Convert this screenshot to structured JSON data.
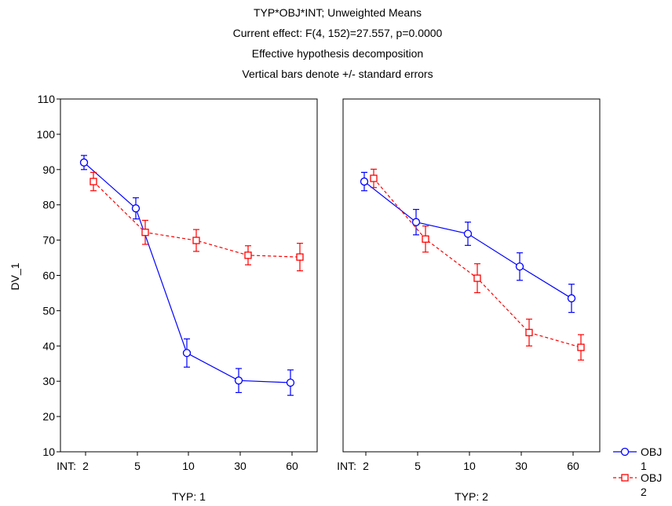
{
  "chart_data": {
    "type": "line",
    "title_lines": [
      "TYP*OBJ*INT; Unweighted Means",
      "Current effect: F(4, 152)=27.557, p=0.0000",
      "Effective hypothesis decomposition",
      "Vertical bars denote +/- standard errors"
    ],
    "ylabel": "DV_1",
    "ylim": [
      10,
      110
    ],
    "yticks": [
      "10",
      "20",
      "30",
      "40",
      "50",
      "60",
      "70",
      "80",
      "90",
      "100",
      "110"
    ],
    "x_prefix": "INT:",
    "categories": [
      "2",
      "5",
      "10",
      "30",
      "60"
    ],
    "legend_title": "OBJ",
    "legend_position": "bottom-right",
    "panels": [
      {
        "label": "TYP: 1",
        "series": [
          {
            "name": "1",
            "color": "#0000ff",
            "marker": "circle",
            "dash": "solid",
            "values": [
              92,
              79,
              38,
              30.2,
              29.6
            ],
            "errors": [
              2,
              3,
              4,
              3.4,
              3.6
            ]
          },
          {
            "name": "2",
            "color": "#ff0000",
            "marker": "square",
            "dash": "dashed",
            "values": [
              86.6,
              72.2,
              69.9,
              65.7,
              65.2
            ],
            "errors": [
              2.6,
              3.4,
              3.1,
              2.7,
              3.9
            ]
          }
        ]
      },
      {
        "label": "TYP: 2",
        "series": [
          {
            "name": "1",
            "color": "#0000ff",
            "marker": "circle",
            "dash": "solid",
            "values": [
              86.6,
              75.1,
              71.8,
              62.5,
              53.5
            ],
            "errors": [
              2.6,
              3.6,
              3.3,
              3.9,
              4
            ]
          },
          {
            "name": "2",
            "color": "#ff0000",
            "marker": "square",
            "dash": "dashed",
            "values": [
              87.5,
              70.3,
              59.2,
              43.8,
              39.6
            ],
            "errors": [
              2.6,
              3.7,
              4.1,
              3.8,
              3.6
            ]
          }
        ]
      }
    ]
  }
}
